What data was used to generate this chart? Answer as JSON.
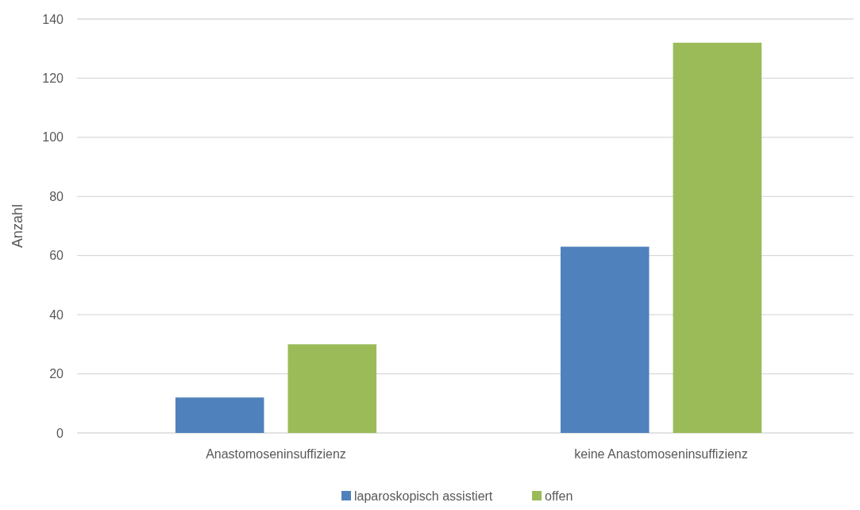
{
  "chart_data": {
    "type": "bar",
    "ylabel": "Anzahl",
    "categories": [
      "Anastomoseninsuffizienz",
      "keine Anastomoseninsuffizienz"
    ],
    "series": [
      {
        "name": "laparoskopisch assistiert",
        "color": "#4f81bd",
        "values": [
          12,
          63
        ]
      },
      {
        "name": "offen",
        "color": "#9bbb59",
        "values": [
          30,
          132
        ]
      }
    ],
    "ylim": [
      0,
      140
    ],
    "yticks": [
      0,
      20,
      40,
      60,
      80,
      100,
      120,
      140
    ],
    "grid": "y",
    "legend": "bottom"
  }
}
